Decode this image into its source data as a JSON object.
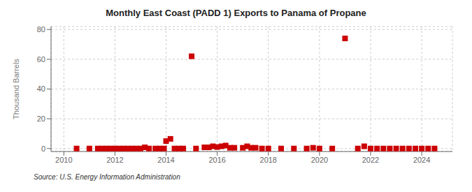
{
  "chart_data": {
    "type": "scatter",
    "title": "Monthly East Coast (PADD 1) Exports to Panama of Propane",
    "ylabel": "Thousand Barrels",
    "source": "Source: U.S. Energy Information Administration",
    "xlim": [
      2009.5,
      2025.2
    ],
    "ylim": [
      -2,
      82
    ],
    "xticks": [
      2010,
      2012,
      2014,
      2016,
      2018,
      2020,
      2022,
      2024
    ],
    "yticks": [
      0,
      20,
      40,
      60,
      80
    ],
    "grid": true,
    "color": "#cc0000",
    "marker": "square",
    "x": [
      2010.5,
      2011.0,
      2011.33,
      2011.5,
      2011.67,
      2011.83,
      2012.0,
      2012.17,
      2012.33,
      2012.5,
      2012.67,
      2012.83,
      2013.0,
      2013.17,
      2013.33,
      2013.58,
      2013.75,
      2013.92,
      2014.0,
      2014.17,
      2014.33,
      2014.5,
      2014.67,
      2015.0,
      2015.17,
      2015.5,
      2015.67,
      2015.83,
      2016.0,
      2016.17,
      2016.33,
      2016.5,
      2016.67,
      2017.0,
      2017.17,
      2017.33,
      2017.5,
      2017.75,
      2018.0,
      2018.5,
      2019.0,
      2019.5,
      2019.75,
      2020.0,
      2020.5,
      2021.0,
      2021.5,
      2021.75,
      2022.0,
      2022.25,
      2022.5,
      2022.75,
      2023.0,
      2023.25,
      2023.5,
      2023.75,
      2024.0,
      2024.25,
      2024.5
    ],
    "values": [
      0.0,
      0.0,
      0.0,
      0.0,
      0.0,
      0.0,
      0.0,
      0.0,
      0.0,
      0.0,
      0.0,
      0.0,
      0.0,
      0.8,
      0.0,
      0.0,
      0.0,
      0.0,
      5.0,
      6.5,
      0.0,
      0.0,
      0.0,
      62.0,
      0.0,
      0.8,
      0.8,
      1.5,
      1.0,
      1.5,
      2.0,
      0.5,
      0.5,
      0.5,
      1.5,
      0.5,
      0.5,
      0.0,
      0.0,
      0.0,
      0.0,
      0.0,
      0.5,
      0.0,
      0.0,
      74.0,
      0.0,
      1.5,
      0.0,
      0.0,
      0.0,
      0.0,
      0.0,
      0.0,
      0.0,
      0.0,
      0.0,
      0.0,
      0.0
    ]
  }
}
